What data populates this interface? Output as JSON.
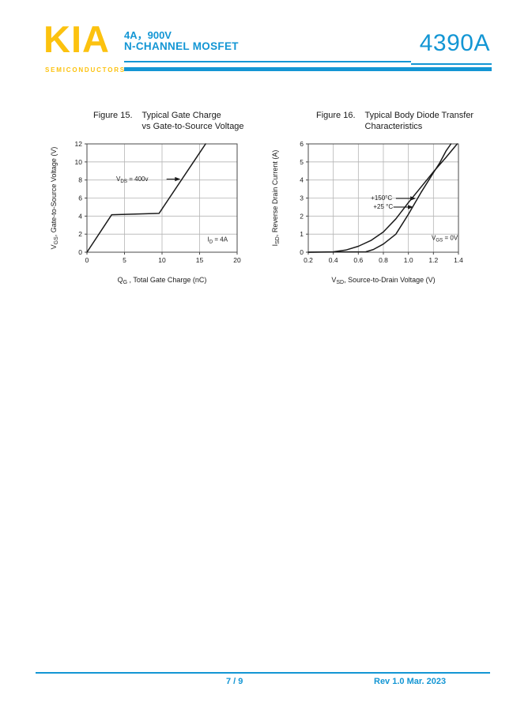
{
  "colors": {
    "accent_blue": "#1396d4",
    "accent_yellow": "#fcc20f",
    "chart_line": "#1a1a1a",
    "grid_line": "#b5b5b5",
    "plot_border": "#4a4a4a",
    "text": "#1a1a1a"
  },
  "header": {
    "logo_text": "KIA",
    "logo_subtext": "SEMICONDUCTORS",
    "rating_line": "4A，900V",
    "device_type_line": "N-CHANNEL MOSFET",
    "part_number": "4390A"
  },
  "figures": [
    {
      "id": "fig15",
      "title_label": "Figure 15.",
      "title_lines": [
        "Typical Gate Charge",
        "vs Gate-to-Source Voltage"
      ],
      "chart_data": {
        "type": "line",
        "title": "Figure 15. Typical Gate Charge vs Gate-to-Source Voltage",
        "xlabel": "QG, Total Gate Charge (nC)",
        "ylabel": "VGS, Gate-to-Source Voltage (V)",
        "xlabel_segments": [
          {
            "t": "Q"
          },
          {
            "t": "G",
            "sub": true
          },
          {
            "t": " , Total Gate Charge (nC)"
          }
        ],
        "ylabel_segments": [
          {
            "t": "V"
          },
          {
            "t": "GS",
            "sub": true
          },
          {
            "t": ", Gate-to-Source Voltage (V)"
          }
        ],
        "xlim": [
          0,
          20
        ],
        "ylim": [
          0,
          12
        ],
        "xticks": [
          "0",
          "5",
          "10",
          "15",
          "20"
        ],
        "yticks": [
          "0",
          "2",
          "4",
          "6",
          "8",
          "10",
          "12"
        ],
        "grid": true,
        "legend_position": "none",
        "series": [
          {
            "name": "gate-charge-curve",
            "x": [
              0,
              3.3,
              9.6,
              15.8
            ],
            "y": [
              0,
              4.15,
              4.3,
              12
            ]
          }
        ],
        "annotations": [
          {
            "name": "vds-condition-label",
            "text": "VDS = 400v",
            "segments": [
              {
                "t": "V"
              },
              {
                "t": "DS",
                "sub": true
              },
              {
                "t": " = 400v"
              }
            ],
            "x": 3.9,
            "y": 8.15,
            "anchor": "start",
            "arrow": {
              "x1": 10.6,
              "y1": 8.1,
              "x2": 12.45,
              "y2": 8.1
            }
          },
          {
            "name": "id-condition-label",
            "text": "ID = 4A",
            "segments": [
              {
                "t": "I"
              },
              {
                "t": "D",
                "sub": true
              },
              {
                "t": " = 4A"
              }
            ],
            "x": 17.4,
            "y": 1.45,
            "anchor": "middle"
          }
        ]
      }
    },
    {
      "id": "fig16",
      "title_label": "Figure 16.",
      "title_lines": [
        "Typical Body Diode Transfer",
        "Characteristics"
      ],
      "chart_data": {
        "type": "line",
        "title": "Figure 16. Typical Body Diode Transfer Characteristics",
        "xlabel": "VSD, Source-to-Drain Voltage (V)",
        "ylabel": "ISD, Reverse Drain Current (A)",
        "xlabel_segments": [
          {
            "t": "V"
          },
          {
            "t": "SD",
            "sub": true
          },
          {
            "t": ", Source-to-Drain Voltage (V)"
          }
        ],
        "ylabel_segments": [
          {
            "t": "I"
          },
          {
            "t": "SD",
            "sub": true
          },
          {
            "t": ", Reverse Drain Current (A)"
          }
        ],
        "xlim": [
          0.2,
          1.4
        ],
        "ylim": [
          0,
          6
        ],
        "xticks": [
          "0.2",
          "0.4",
          "0.6",
          "0.8",
          "1.0",
          "1.2",
          "1.4"
        ],
        "yticks": [
          "0",
          "1",
          "2",
          "3",
          "4",
          "5",
          "6"
        ],
        "grid": true,
        "legend_position": "none",
        "series": [
          {
            "name": "+150°C",
            "x": [
              0.2,
              0.4,
              0.5,
              0.6,
              0.7,
              0.8,
              0.9,
              1.0,
              1.1,
              1.2,
              1.3,
              1.39
            ],
            "y": [
              0,
              0.02,
              0.12,
              0.33,
              0.65,
              1.12,
              1.85,
              2.75,
              3.6,
              4.45,
              5.25,
              6
            ]
          },
          {
            "name": "+25 °C",
            "x": [
              0.2,
              0.66,
              0.72,
              0.8,
              0.9,
              1.0,
              1.1,
              1.2,
              1.25,
              1.3,
              1.34
            ],
            "y": [
              0,
              0.02,
              0.15,
              0.45,
              1.0,
              2.1,
              3.3,
              4.4,
              4.95,
              5.6,
              6
            ]
          }
        ],
        "annotations": [
          {
            "name": "temp-150-label",
            "text": "+150°C",
            "segments": [
              {
                "t": "+150°C"
              }
            ],
            "x": 0.7,
            "y": 3.02,
            "anchor": "start",
            "arrow": {
              "x1": 0.9,
              "y1": 2.98,
              "x2": 1.06,
              "y2": 2.98
            }
          },
          {
            "name": "temp-25-label",
            "text": "+25 °C",
            "segments": [
              {
                "t": "+25 °C"
              }
            ],
            "x": 0.72,
            "y": 2.54,
            "anchor": "start",
            "arrow": {
              "x1": 0.88,
              "y1": 2.5,
              "x2": 1.04,
              "y2": 2.5
            }
          },
          {
            "name": "vgs-condition-label",
            "text": "VGS = 0V",
            "segments": [
              {
                "t": "V"
              },
              {
                "t": "GS",
                "sub": true
              },
              {
                "t": " = 0V"
              }
            ],
            "x": 1.29,
            "y": 0.8,
            "anchor": "middle"
          }
        ]
      }
    }
  ],
  "footer": {
    "page_indicator": "7 / 9",
    "revision": "Rev 1.0 Mar. 2023"
  }
}
